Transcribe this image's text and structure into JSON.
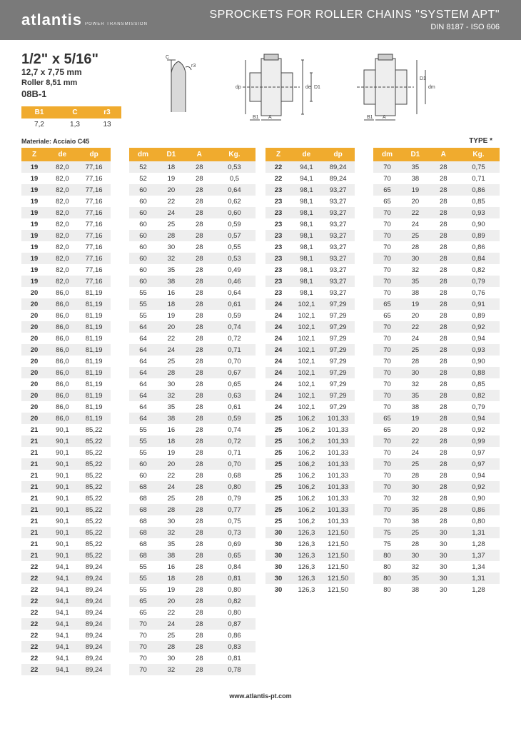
{
  "header": {
    "logo_text": "atlantis",
    "logo_sub": "POWER TRANSMISSION",
    "title": "SPROCKETS FOR ROLLER CHAINS \"SYSTEM APT\"",
    "subtitle": "DIN 8187 - ISO 606"
  },
  "spec": {
    "main": "1/2\" x 5/16\"",
    "mm": "12,7 x 7,75 mm",
    "roller": "Roller 8,51 mm",
    "code": "08B-1"
  },
  "mini": {
    "headers": [
      "B1",
      "C",
      "r3"
    ],
    "values": [
      "7,2",
      "1,3",
      "13"
    ]
  },
  "material": "Materiale: Acciaio C45",
  "type_label": "TYPE *",
  "columns": [
    "Z",
    "de",
    "dp",
    "",
    "dm",
    "D1",
    "A",
    "Kg."
  ],
  "col_widths": [
    "11%",
    "13%",
    "14%",
    "8%",
    "12%",
    "12%",
    "12%",
    "18%"
  ],
  "left_rows": [
    [
      "19",
      "82,0",
      "77,16",
      "52",
      "18",
      "28",
      "0,53"
    ],
    [
      "19",
      "82,0",
      "77,16",
      "52",
      "19",
      "28",
      "0,5"
    ],
    [
      "19",
      "82,0",
      "77,16",
      "60",
      "20",
      "28",
      "0,64"
    ],
    [
      "19",
      "82,0",
      "77,16",
      "60",
      "22",
      "28",
      "0,62"
    ],
    [
      "19",
      "82,0",
      "77,16",
      "60",
      "24",
      "28",
      "0,60"
    ],
    [
      "19",
      "82,0",
      "77,16",
      "60",
      "25",
      "28",
      "0,59"
    ],
    [
      "19",
      "82,0",
      "77,16",
      "60",
      "28",
      "28",
      "0,57"
    ],
    [
      "19",
      "82,0",
      "77,16",
      "60",
      "30",
      "28",
      "0,55"
    ],
    [
      "19",
      "82,0",
      "77,16",
      "60",
      "32",
      "28",
      "0,53"
    ],
    [
      "19",
      "82,0",
      "77,16",
      "60",
      "35",
      "28",
      "0,49"
    ],
    [
      "19",
      "82,0",
      "77,16",
      "60",
      "38",
      "28",
      "0,46"
    ],
    [
      "20",
      "86,0",
      "81,19",
      "55",
      "16",
      "28",
      "0,64"
    ],
    [
      "20",
      "86,0",
      "81,19",
      "55",
      "18",
      "28",
      "0,61"
    ],
    [
      "20",
      "86,0",
      "81,19",
      "55",
      "19",
      "28",
      "0,59"
    ],
    [
      "20",
      "86,0",
      "81,19",
      "64",
      "20",
      "28",
      "0,74"
    ],
    [
      "20",
      "86,0",
      "81,19",
      "64",
      "22",
      "28",
      "0,72"
    ],
    [
      "20",
      "86,0",
      "81,19",
      "64",
      "24",
      "28",
      "0,71"
    ],
    [
      "20",
      "86,0",
      "81,19",
      "64",
      "25",
      "28",
      "0,70"
    ],
    [
      "20",
      "86,0",
      "81,19",
      "64",
      "28",
      "28",
      "0,67"
    ],
    [
      "20",
      "86,0",
      "81,19",
      "64",
      "30",
      "28",
      "0,65"
    ],
    [
      "20",
      "86,0",
      "81,19",
      "64",
      "32",
      "28",
      "0,63"
    ],
    [
      "20",
      "86,0",
      "81,19",
      "64",
      "35",
      "28",
      "0,61"
    ],
    [
      "20",
      "86,0",
      "81,19",
      "64",
      "38",
      "28",
      "0,59"
    ],
    [
      "21",
      "90,1",
      "85,22",
      "55",
      "16",
      "28",
      "0,74"
    ],
    [
      "21",
      "90,1",
      "85,22",
      "55",
      "18",
      "28",
      "0,72"
    ],
    [
      "21",
      "90,1",
      "85,22",
      "55",
      "19",
      "28",
      "0,71"
    ],
    [
      "21",
      "90,1",
      "85,22",
      "60",
      "20",
      "28",
      "0,70"
    ],
    [
      "21",
      "90,1",
      "85,22",
      "60",
      "22",
      "28",
      "0,68"
    ],
    [
      "21",
      "90,1",
      "85,22",
      "68",
      "24",
      "28",
      "0,80"
    ],
    [
      "21",
      "90,1",
      "85,22",
      "68",
      "25",
      "28",
      "0,79"
    ],
    [
      "21",
      "90,1",
      "85,22",
      "68",
      "28",
      "28",
      "0,77"
    ],
    [
      "21",
      "90,1",
      "85,22",
      "68",
      "30",
      "28",
      "0,75"
    ],
    [
      "21",
      "90,1",
      "85,22",
      "68",
      "32",
      "28",
      "0,73"
    ],
    [
      "21",
      "90,1",
      "85,22",
      "68",
      "35",
      "28",
      "0,69"
    ],
    [
      "21",
      "90,1",
      "85,22",
      "68",
      "38",
      "28",
      "0,65"
    ],
    [
      "22",
      "94,1",
      "89,24",
      "55",
      "16",
      "28",
      "0,84"
    ],
    [
      "22",
      "94,1",
      "89,24",
      "55",
      "18",
      "28",
      "0,81"
    ],
    [
      "22",
      "94,1",
      "89,24",
      "55",
      "19",
      "28",
      "0,80"
    ],
    [
      "22",
      "94,1",
      "89,24",
      "65",
      "20",
      "28",
      "0,82"
    ],
    [
      "22",
      "94,1",
      "89,24",
      "65",
      "22",
      "28",
      "0,80"
    ],
    [
      "22",
      "94,1",
      "89,24",
      "70",
      "24",
      "28",
      "0,87"
    ],
    [
      "22",
      "94,1",
      "89,24",
      "70",
      "25",
      "28",
      "0,86"
    ],
    [
      "22",
      "94,1",
      "89,24",
      "70",
      "28",
      "28",
      "0,83"
    ],
    [
      "22",
      "94,1",
      "89,24",
      "70",
      "30",
      "28",
      "0,81"
    ],
    [
      "22",
      "94,1",
      "89,24",
      "70",
      "32",
      "28",
      "0,78"
    ]
  ],
  "right_rows": [
    [
      "22",
      "94,1",
      "89,24",
      "70",
      "35",
      "28",
      "0,75"
    ],
    [
      "22",
      "94,1",
      "89,24",
      "70",
      "38",
      "28",
      "0,71"
    ],
    [
      "23",
      "98,1",
      "93,27",
      "65",
      "19",
      "28",
      "0,86"
    ],
    [
      "23",
      "98,1",
      "93,27",
      "65",
      "20",
      "28",
      "0,85"
    ],
    [
      "23",
      "98,1",
      "93,27",
      "70",
      "22",
      "28",
      "0,93"
    ],
    [
      "23",
      "98,1",
      "93,27",
      "70",
      "24",
      "28",
      "0,90"
    ],
    [
      "23",
      "98,1",
      "93,27",
      "70",
      "25",
      "28",
      "0,89"
    ],
    [
      "23",
      "98,1",
      "93,27",
      "70",
      "28",
      "28",
      "0,86"
    ],
    [
      "23",
      "98,1",
      "93,27",
      "70",
      "30",
      "28",
      "0,84"
    ],
    [
      "23",
      "98,1",
      "93,27",
      "70",
      "32",
      "28",
      "0,82"
    ],
    [
      "23",
      "98,1",
      "93,27",
      "70",
      "35",
      "28",
      "0,79"
    ],
    [
      "23",
      "98,1",
      "93,27",
      "70",
      "38",
      "28",
      "0,76"
    ],
    [
      "24",
      "102,1",
      "97,29",
      "65",
      "19",
      "28",
      "0,91"
    ],
    [
      "24",
      "102,1",
      "97,29",
      "65",
      "20",
      "28",
      "0,89"
    ],
    [
      "24",
      "102,1",
      "97,29",
      "70",
      "22",
      "28",
      "0,92"
    ],
    [
      "24",
      "102,1",
      "97,29",
      "70",
      "24",
      "28",
      "0,94"
    ],
    [
      "24",
      "102,1",
      "97,29",
      "70",
      "25",
      "28",
      "0,93"
    ],
    [
      "24",
      "102,1",
      "97,29",
      "70",
      "28",
      "28",
      "0,90"
    ],
    [
      "24",
      "102,1",
      "97,29",
      "70",
      "30",
      "28",
      "0,88"
    ],
    [
      "24",
      "102,1",
      "97,29",
      "70",
      "32",
      "28",
      "0,85"
    ],
    [
      "24",
      "102,1",
      "97,29",
      "70",
      "35",
      "28",
      "0,82"
    ],
    [
      "24",
      "102,1",
      "97,29",
      "70",
      "38",
      "28",
      "0,79"
    ],
    [
      "25",
      "106,2",
      "101,33",
      "65",
      "19",
      "28",
      "0,94"
    ],
    [
      "25",
      "106,2",
      "101,33",
      "65",
      "20",
      "28",
      "0,92"
    ],
    [
      "25",
      "106,2",
      "101,33",
      "70",
      "22",
      "28",
      "0,99"
    ],
    [
      "25",
      "106,2",
      "101,33",
      "70",
      "24",
      "28",
      "0,97"
    ],
    [
      "25",
      "106,2",
      "101,33",
      "70",
      "25",
      "28",
      "0,97"
    ],
    [
      "25",
      "106,2",
      "101,33",
      "70",
      "28",
      "28",
      "0,94"
    ],
    [
      "25",
      "106,2",
      "101,33",
      "70",
      "30",
      "28",
      "0,92"
    ],
    [
      "25",
      "106,2",
      "101,33",
      "70",
      "32",
      "28",
      "0,90"
    ],
    [
      "25",
      "106,2",
      "101,33",
      "70",
      "35",
      "28",
      "0,86"
    ],
    [
      "25",
      "106,2",
      "101,33",
      "70",
      "38",
      "28",
      "0,80"
    ],
    [
      "30",
      "126,3",
      "121,50",
      "75",
      "25",
      "30",
      "1,31"
    ],
    [
      "30",
      "126,3",
      "121,50",
      "75",
      "28",
      "30",
      "1,28"
    ],
    [
      "30",
      "126,3",
      "121,50",
      "80",
      "30",
      "30",
      "1,37"
    ],
    [
      "30",
      "126,3",
      "121,50",
      "80",
      "32",
      "30",
      "1,34"
    ],
    [
      "30",
      "126,3",
      "121,50",
      "80",
      "35",
      "30",
      "1,31"
    ],
    [
      "30",
      "126,3",
      "121,50",
      "80",
      "38",
      "30",
      "1,28"
    ]
  ],
  "footer": "www.atlantis-pt.com",
  "colors": {
    "header_bg": "#7a7a7a",
    "accent": "#f0ab2e",
    "row_alt": "#eeeeee"
  }
}
